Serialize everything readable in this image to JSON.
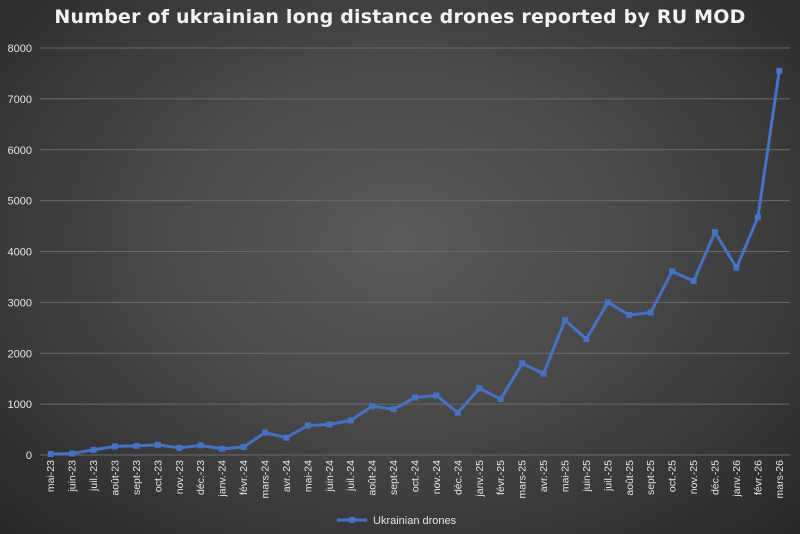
{
  "chart_data": {
    "type": "line",
    "title": "Number of ukrainian long distance drones reported by RU MOD",
    "xlabel": "",
    "ylabel": "",
    "ylim": [
      0,
      8000
    ],
    "yticks": [
      0,
      1000,
      2000,
      3000,
      4000,
      5000,
      6000,
      7000,
      8000
    ],
    "grid": true,
    "legend_position": "bottom",
    "line_color": "#4472c4",
    "categories": [
      "mai-23",
      "juin-23",
      "juil.-23",
      "août-23",
      "sept-23",
      "oct.-23",
      "nov.-23",
      "déc.-23",
      "janv.-24",
      "févr.-24",
      "mars-24",
      "avr.-24",
      "mai-24",
      "juin-24",
      "juil.-24",
      "août-24",
      "sept-24",
      "oct.-24",
      "nov.-24",
      "déc.-24",
      "janv.-25",
      "févr.-25",
      "mars-25",
      "avr.-25",
      "mai-25",
      "juin-25",
      "juil.-25",
      "août-25",
      "sept-25",
      "oct.-25",
      "nov.-25",
      "déc.-25",
      "janv.-26",
      "févr.-26",
      "mars-26"
    ],
    "series": [
      {
        "name": "Ukrainian drones",
        "values": [
          20,
          30,
          100,
          170,
          180,
          200,
          140,
          190,
          120,
          160,
          440,
          340,
          580,
          600,
          680,
          960,
          900,
          1130,
          1170,
          830,
          1310,
          1100,
          1800,
          1600,
          2650,
          2280,
          3000,
          2750,
          2800,
          3610,
          3420,
          4380,
          3680,
          4670,
          7550
        ]
      }
    ]
  }
}
